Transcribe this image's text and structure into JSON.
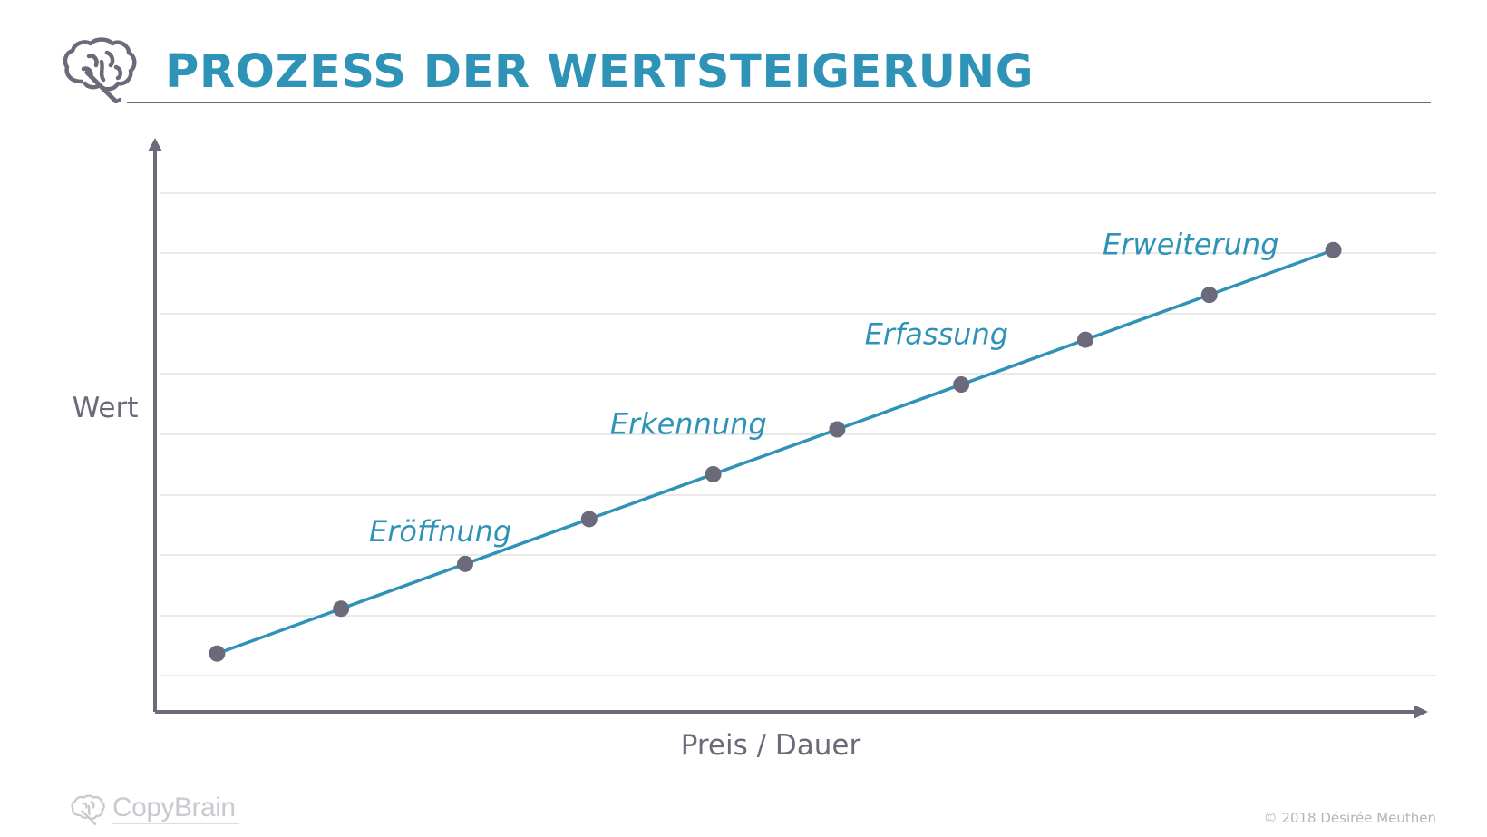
{
  "header": {
    "title": "PROZESS DER WERTSTEIGERUNG",
    "logo_icon": "brain-icon"
  },
  "chart_data": {
    "type": "line",
    "title": "PROZESS DER WERTSTEIGERUNG",
    "xlabel": "Preis / Dauer",
    "ylabel": "Wert",
    "x": [
      1,
      2,
      3,
      4,
      5,
      6,
      7,
      8,
      9,
      10
    ],
    "series": [
      {
        "values": [
          1,
          2,
          3,
          4,
          5,
          6,
          7,
          8,
          9,
          10
        ]
      }
    ],
    "xlim": [
      0.5,
      10.8
    ],
    "ylim": [
      -0.3,
      12.3
    ],
    "grid": "horizontal",
    "tick_labels_shown": false,
    "annotations": [
      {
        "text": "Eröffnung",
        "x": 2.8,
        "y": 3.5
      },
      {
        "text": "Erkennung",
        "x": 4.8,
        "y": 5.9
      },
      {
        "text": "Erfassung",
        "x": 6.8,
        "y": 7.9
      },
      {
        "text": "Erweiterung",
        "x": 8.85,
        "y": 9.9
      }
    ],
    "colors": {
      "line": "#2e93b6",
      "marker": "#6b6a7a",
      "axis": "#6b6a7a",
      "grid": "#dcdcdc",
      "annotation": "#2e93b6"
    }
  },
  "footer": {
    "logo_text": "CopyBrain",
    "copyright": "© 2018 Désirée Meuthen"
  }
}
